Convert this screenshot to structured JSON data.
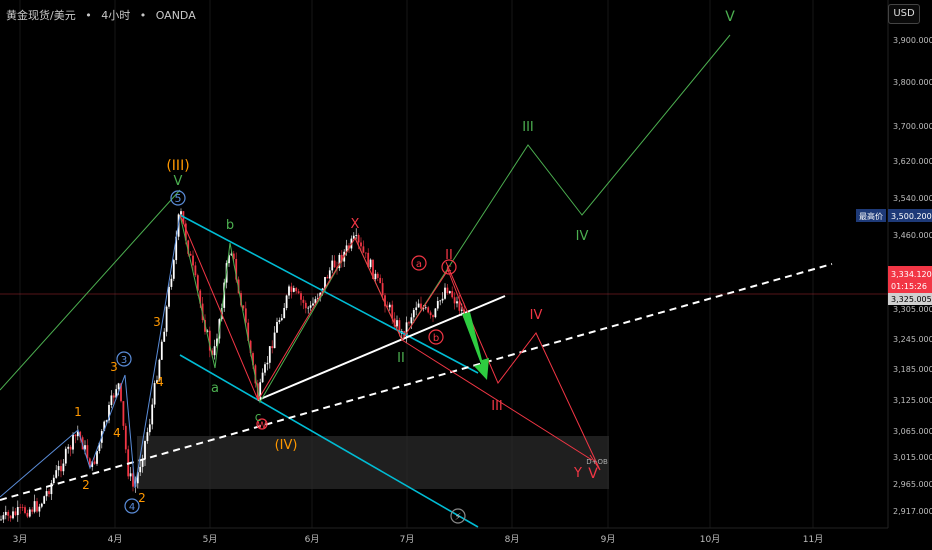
{
  "header": {
    "symbol": "黄金现货/美元",
    "interval": "4小时",
    "source": "OANDA",
    "separator": "•"
  },
  "axis": {
    "currency": "USD",
    "price_ticks": [
      "3,900.000",
      "3,800.000",
      "3,700.000",
      "3,620.000",
      "3,540.000",
      "3,460.000",
      "3,305.000",
      "3,245.000",
      "3,185.000",
      "3,125.000",
      "3,065.000",
      "3,015.000",
      "2,965.000",
      "2,917.000"
    ],
    "month_ticks": [
      "3月",
      "4月",
      "5月",
      "6月",
      "7月",
      "8月",
      "9月",
      "10月",
      "11月"
    ]
  },
  "price_labels": {
    "high_tag": "最高价",
    "high_value": "3,500.200",
    "current_price": "3,334.120",
    "countdown": "01:15:26",
    "prev_value": "3,325.005"
  },
  "colors": {
    "background": "#000000",
    "bull_candle": "#ffffff",
    "bear_candle": "#f23645",
    "green_wave": "#4caf50",
    "red_wave": "#f23645",
    "orange_wave": "#ff9800",
    "cyan_channel": "#00bcd4",
    "blue_wave": "#5b8dd9",
    "price_badge": "#f23645",
    "high_badge": "#1e3a78"
  },
  "chart_data": {
    "type": "candlestick",
    "title": "",
    "xlabel": "",
    "ylabel": "",
    "ylim": [
      2900,
      3950
    ],
    "annotations": {
      "green": [
        "V",
        "5",
        "b",
        "a",
        "c",
        "II",
        "III",
        "IV",
        "V"
      ],
      "orange": [
        "(III)",
        "(IV)",
        "1",
        "2",
        "3",
        "4",
        "3",
        "4",
        "2"
      ],
      "red": [
        "X",
        "a",
        "c",
        "b",
        "II",
        "III",
        "IV",
        "W",
        "Y",
        "V"
      ],
      "blue": [
        "3",
        "4",
        "5"
      ],
      "small": [
        "D+OB"
      ]
    }
  }
}
